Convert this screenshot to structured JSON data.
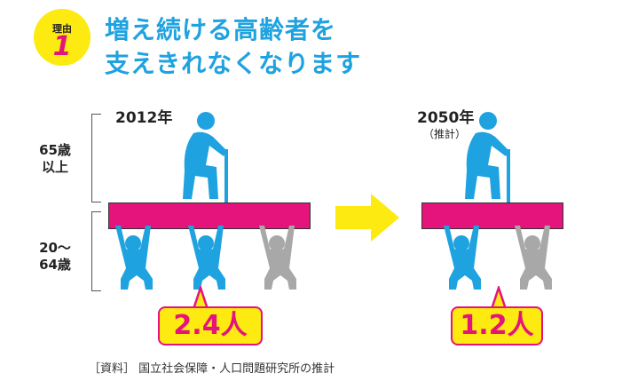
{
  "badge": {
    "label": "理由",
    "number": "1"
  },
  "headline": {
    "line1": "増え続ける高齢者を",
    "line2": "支えきれなくなります"
  },
  "left": {
    "year": "2012年",
    "ratio": "2.4人"
  },
  "right": {
    "year": "2050年",
    "note": "（推計）",
    "ratio": "1.2人"
  },
  "age_labels": {
    "elderly_line1": "65歳",
    "elderly_line2": "以上",
    "working_line1": "20～",
    "working_line2": "64歳"
  },
  "source": "［資料］ 国立社会保障・人口問題研究所の推計",
  "colors": {
    "blue": "#1fa2e0",
    "pink": "#e4147c",
    "yellow": "#fcea10",
    "gray": "#a8a8a8"
  }
}
